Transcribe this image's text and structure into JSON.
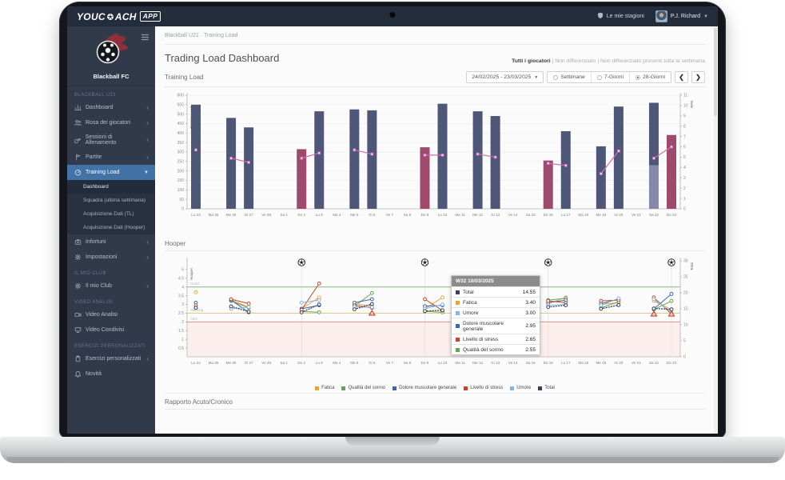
{
  "navbar": {
    "logo_pre": "YOUC",
    "logo_post": "ACH",
    "logo_badge": "APP",
    "seasons_label": "Le mie stagioni",
    "user_name": "P.J. Richard"
  },
  "sidebar": {
    "club_name": "Blackball FC",
    "sections": [
      {
        "header": "BLACKBALL U21",
        "items": [
          {
            "label": "Dashboard",
            "icon": "dashboard-icon",
            "chevron": "collapsed"
          },
          {
            "label": "Rosa dei giocatori",
            "icon": "players-icon",
            "chevron": "collapsed"
          },
          {
            "label": "Sessioni di Allenamento",
            "icon": "whistle-icon",
            "chevron": "collapsed"
          },
          {
            "label": "Partite",
            "icon": "flag-icon",
            "chevron": "collapsed"
          },
          {
            "label": "Training Load",
            "icon": "gauge-icon",
            "chevron": "expanded",
            "active": true,
            "subitems": [
              {
                "label": "Dashboard",
                "current": true
              },
              {
                "label": "Squadra (ultima settimana)"
              },
              {
                "label": "Acquisizione Dati (TL)"
              },
              {
                "label": "Acquisizione Dati (Hooper)"
              }
            ]
          },
          {
            "label": "Infortuni",
            "icon": "medkit-icon",
            "chevron": "collapsed"
          },
          {
            "label": "Impostazioni",
            "icon": "gear-icon",
            "chevron": "collapsed"
          }
        ]
      },
      {
        "header": "IL MIO CLUB",
        "items": [
          {
            "label": "Il mio Club",
            "icon": "gear-icon",
            "chevron": "collapsed"
          }
        ]
      },
      {
        "header": "VIDEO ANALISI",
        "items": [
          {
            "label": "Video Analisi",
            "icon": "video-camera-icon"
          },
          {
            "label": "Video Condivisi",
            "icon": "monitor-icon"
          }
        ]
      },
      {
        "header": "ESERCIZI PERSONALIZZATI",
        "items": [
          {
            "label": "Esercizi personalizzati",
            "icon": "clipboard-icon",
            "chevron": "collapsed"
          },
          {
            "label": "Novità",
            "icon": "bell-icon"
          }
        ]
      }
    ]
  },
  "breadcrumb": {
    "parts": [
      "Blackball U21",
      "Training Load"
    ],
    "separator": "·"
  },
  "header": {
    "title": "Trading Load Dashboard",
    "filters": [
      "Tutti i giocatori",
      "Non differenziato",
      "Non differenziato presenti tutta la settimana"
    ],
    "filter_separator": "|"
  },
  "controls": {
    "date_range": "24/02/2025 - 23/03/2025",
    "period_options": [
      {
        "label": "Settimane",
        "selected": false
      },
      {
        "label": "7-Giorni",
        "selected": false
      },
      {
        "label": "28-Giorni",
        "selected": true
      }
    ],
    "prev_label": "❮",
    "next_label": "❯"
  },
  "sections": {
    "training_load": "Training Load",
    "hooper": "Hooper",
    "acute_chronic": "Rapporto Acuto/Cronico"
  },
  "tooltip": {
    "title": "W32 10/03/2025",
    "rows": [
      {
        "label": "Total",
        "color": "#39435c",
        "value": "14.55"
      },
      {
        "label": "Fatica",
        "color": "#e2a63d",
        "value": "3.40"
      },
      {
        "label": "Umore",
        "color": "#85b6e0",
        "value": "3.00"
      },
      {
        "label": "Dolore muscolare generale",
        "color": "#3a67ad",
        "value": "2.95"
      },
      {
        "label": "Livello di stress",
        "color": "#c3452e",
        "value": "2.65"
      },
      {
        "label": "Qualità del sonno",
        "color": "#61a656",
        "value": "2.55"
      }
    ]
  },
  "chart_data": [
    {
      "type": "bar",
      "title": "Training Load",
      "ylabel_left": "Training Load",
      "ylabel_right": "RPE",
      "ylim_left": [
        0,
        600
      ],
      "ytick_step_left": 50,
      "ylim_right": [
        0,
        11
      ],
      "ytick_step_right": 1,
      "grid": true,
      "legend_position": "none",
      "categories": [
        "Lu 24",
        "Ma 25",
        "Me 26",
        "Gi 27",
        "Ve 28",
        "Sa 1",
        "Do 2",
        "Lu 3",
        "Ma 4",
        "Me 5",
        "Gi 6",
        "Ve 7",
        "Sa 8",
        "Do 9",
        "Lu 10",
        "Ma 11",
        "Me 12",
        "Gi 13",
        "Ve 14",
        "Sa 15",
        "Do 16",
        "Lu 17",
        "Ma 18",
        "Me 19",
        "Gi 20",
        "Ve 21",
        "Sa 22",
        "Do 23"
      ],
      "series": [
        {
          "name": "Training Load",
          "type": "bar",
          "values": [
            550,
            null,
            480,
            430,
            null,
            null,
            315,
            515,
            null,
            525,
            520,
            null,
            null,
            325,
            555,
            null,
            515,
            490,
            null,
            null,
            255,
            410,
            null,
            330,
            540,
            null,
            560,
            390
          ],
          "match_day_indices": [
            6,
            13,
            20,
            27
          ],
          "light_base": {
            "26": 230
          },
          "bar_color": "#4e5777",
          "match_bar_color": "#9e4a6d",
          "light_bar_color": "#8289ab"
        },
        {
          "name": "RPE",
          "type": "line",
          "axis": "right",
          "color": "#d06cb5",
          "values": [
            5.7,
            null,
            4.9,
            4.5,
            null,
            null,
            4.9,
            5.4,
            null,
            5.7,
            5.3,
            null,
            null,
            5.2,
            5.2,
            null,
            5.3,
            5.0,
            null,
            null,
            4.4,
            4.2,
            null,
            3.4,
            5.6,
            null,
            4.9,
            6.0
          ]
        }
      ]
    },
    {
      "type": "line",
      "title": "Hooper",
      "ylabel_left": "Hooper",
      "ylabel_right": "Total",
      "ylim_left": [
        0,
        5.5
      ],
      "ytick_step_left": 0.5,
      "ylim_right": [
        0,
        30
      ],
      "ytick_step_right": 5,
      "grid": false,
      "legend_position": "bottom",
      "bands": [
        {
          "label": "Good",
          "value": 4,
          "color": "#86b97e"
        },
        {
          "label": "Warning",
          "value": 2.5,
          "color": "#e6c97e"
        },
        {
          "label": "Alert",
          "value": 2,
          "color": "#dc9181",
          "fill_below": "#fceeec"
        }
      ],
      "match_day_indices": [
        6,
        13,
        20,
        27
      ],
      "alert_markers": [
        {
          "index": 10,
          "value": 2.5
        },
        {
          "index": 26,
          "value": 2.45
        },
        {
          "index": 27,
          "value": 2.45
        }
      ],
      "categories": [
        "Lu 24",
        "Ma 25",
        "Me 26",
        "Gi 27",
        "Ve 28",
        "Sa 1",
        "Do 2",
        "Lu 3",
        "Ma 4",
        "Me 5",
        "Gi 6",
        "Ve 7",
        "Sa 8",
        "Do 9",
        "Lu 10",
        "Ma 11",
        "Me 12",
        "Gi 13",
        "Ve 14",
        "Sa 15",
        "Do 16",
        "Lu 17",
        "Ma 18",
        "Me 19",
        "Gi 20",
        "Ve 21",
        "Sa 22",
        "Do 23"
      ],
      "series": [
        {
          "name": "Fatica",
          "color": "#e2a63d",
          "values": [
            3.7,
            null,
            3.25,
            2.85,
            null,
            null,
            2.75,
            3.4,
            null,
            3.05,
            2.9,
            null,
            null,
            2.75,
            3.4,
            null,
            3.1,
            2.75,
            null,
            null,
            3.05,
            3.4,
            null,
            3.0,
            3.1,
            null,
            3.2,
            2.7
          ]
        },
        {
          "name": "Qualità del sonno",
          "color": "#61a656",
          "values": [
            2.8,
            null,
            3.2,
            2.8,
            null,
            null,
            2.6,
            2.55,
            null,
            2.9,
            3.65,
            null,
            null,
            2.6,
            2.55,
            null,
            3.35,
            3.1,
            null,
            null,
            3.25,
            3.35,
            null,
            2.8,
            3.15,
            null,
            2.7,
            3.2
          ]
        },
        {
          "name": "Dolore muscolare generale",
          "color": "#3a67ad",
          "values": [
            3.1,
            null,
            3.25,
            2.55,
            null,
            null,
            2.75,
            2.95,
            null,
            3.1,
            3.3,
            null,
            null,
            2.9,
            2.95,
            null,
            3.0,
            3.25,
            null,
            null,
            3.1,
            3.25,
            null,
            3.05,
            3.3,
            null,
            2.75,
            3.6
          ]
        },
        {
          "name": "Livello di stress",
          "color": "#c3452e",
          "values": [
            2.95,
            null,
            3.3,
            3.05,
            null,
            null,
            2.7,
            4.2,
            null,
            2.95,
            2.8,
            null,
            null,
            3.3,
            2.65,
            null,
            3.2,
            3.2,
            null,
            null,
            3.2,
            3.1,
            null,
            3.2,
            3.25,
            null,
            3.4,
            2.45
          ]
        },
        {
          "name": "Umore",
          "color": "#85b6e0",
          "values": [
            2.8,
            null,
            2.75,
            2.85,
            null,
            null,
            3.1,
            3.25,
            null,
            2.85,
            2.85,
            null,
            null,
            2.75,
            3.0,
            null,
            2.9,
            3.0,
            null,
            null,
            2.95,
            3.0,
            null,
            2.95,
            3.35,
            null,
            3.3,
            2.55
          ]
        },
        {
          "name": "Total",
          "color": "#39435c",
          "axis": "right",
          "dotted": true,
          "values": [
            15.35,
            null,
            15.75,
            14.1,
            null,
            null,
            13.9,
            16.35,
            null,
            14.85,
            16.5,
            null,
            null,
            14.3,
            14.55,
            null,
            15.55,
            15.3,
            null,
            null,
            15.55,
            16.1,
            null,
            15.0,
            16.15,
            null,
            15.1,
            14.85
          ]
        }
      ],
      "legend": [
        {
          "label": "Fatica",
          "color": "#e2a63d"
        },
        {
          "label": "Qualità del sonno",
          "color": "#61a656"
        },
        {
          "label": "Dolore muscolare generale",
          "color": "#3a67ad"
        },
        {
          "label": "Livello di stress",
          "color": "#c3452e"
        },
        {
          "label": "Umore",
          "color": "#85b6e0"
        },
        {
          "label": "Total",
          "color": "#39435c"
        }
      ]
    }
  ]
}
